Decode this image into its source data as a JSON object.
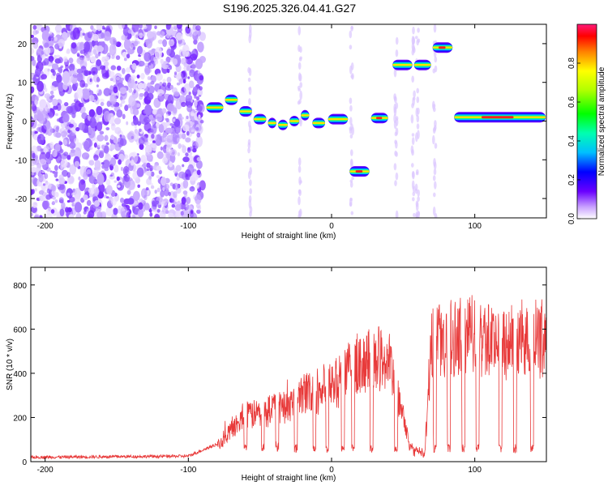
{
  "title": "S196.2025.326.04.41.G27",
  "chart_data": [
    {
      "type": "heatmap",
      "name": "spectrogram",
      "xlabel": "Height of straight line (km)",
      "ylabel": "Frequency (Hz)",
      "xlim": [
        -210,
        150
      ],
      "ylim": [
        -25,
        25
      ],
      "xticks": [
        -200,
        -100,
        0,
        100
      ],
      "yticks": [
        -20,
        -10,
        0,
        10,
        20
      ],
      "colorbar": {
        "label": "Normalized spectral amplitude",
        "range": [
          0,
          1
        ],
        "ticks": [
          0.0,
          0.2,
          0.4,
          0.6,
          0.8
        ],
        "tick_labels": [
          "0.0",
          "0.2",
          "0.4",
          "0.6",
          "0.8"
        ]
      },
      "noise_region_x": [
        -210,
        -90
      ],
      "segments": [
        {
          "x0": -88,
          "x1": -75,
          "freq": 3.5
        },
        {
          "x0": -75,
          "x1": -65,
          "freq": 5.5
        },
        {
          "x0": -65,
          "x1": -55,
          "freq": 2.5
        },
        {
          "x0": -55,
          "x1": -45,
          "freq": 0.5
        },
        {
          "x0": -45,
          "x1": -38,
          "freq": -0.5
        },
        {
          "x0": -38,
          "x1": -30,
          "freq": -1.0
        },
        {
          "x0": -30,
          "x1": -22,
          "freq": 0.0
        },
        {
          "x0": -22,
          "x1": -15,
          "freq": 1.5
        },
        {
          "x0": -14,
          "x1": -4,
          "freq": -0.5
        },
        {
          "x0": -3,
          "x1": 12,
          "freq": 0.5
        },
        {
          "x0": 12,
          "x1": 27,
          "freq": -13
        },
        {
          "x0": 27,
          "x1": 40,
          "freq": 0.8
        },
        {
          "x0": 42,
          "x1": 57,
          "freq": 14.5
        },
        {
          "x0": 57,
          "x1": 70,
          "freq": 14.5
        },
        {
          "x0": 70,
          "x1": 85,
          "freq": 19
        },
        {
          "x0": 85,
          "x1": 150,
          "freq": 1.0
        }
      ]
    },
    {
      "type": "line",
      "name": "snr",
      "xlabel": "Height of straight line (km)",
      "ylabel": "SNR (10 * v/v)",
      "xlim": [
        -210,
        150
      ],
      "ylim": [
        0,
        880
      ],
      "xticks": [
        -200,
        -100,
        0,
        100
      ],
      "yticks": [
        0,
        200,
        400,
        600,
        800
      ],
      "color": "#e83a3a",
      "envelope_x": [
        -210,
        -100,
        -80,
        -70,
        -60,
        -50,
        -40,
        -30,
        -20,
        -10,
        0,
        10,
        20,
        30,
        40,
        45,
        55,
        65,
        70,
        80,
        90,
        100,
        110,
        120,
        130,
        140,
        150
      ],
      "envelope_y": [
        20,
        25,
        80,
        180,
        260,
        280,
        300,
        330,
        380,
        400,
        430,
        500,
        560,
        600,
        560,
        400,
        80,
        40,
        680,
        700,
        700,
        720,
        690,
        690,
        690,
        690,
        690
      ],
      "dropouts_x": [
        -60,
        -48,
        -38,
        -25,
        -12,
        -3,
        8,
        15,
        28,
        45,
        72,
        82,
        92,
        102,
        118,
        128,
        140
      ]
    }
  ]
}
